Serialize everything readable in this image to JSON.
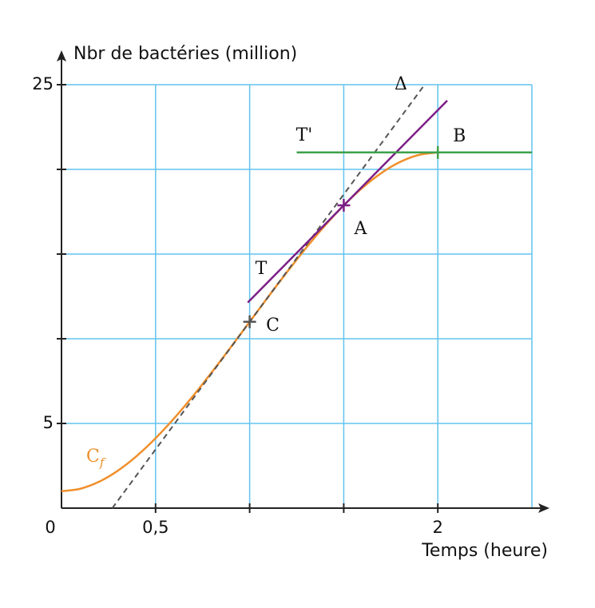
{
  "chart_data": {
    "type": "function",
    "x_label": "Temps (heure)",
    "y_label": "Nbr de bactéries (million)",
    "xlim": [
      0,
      2.5
    ],
    "ylim": [
      0,
      25
    ],
    "xticks": [
      0,
      {
        "value": 0.5,
        "label": "0,5"
      },
      {
        "value": 1,
        "label": null
      },
      {
        "value": 1.5,
        "label": null
      },
      2
    ],
    "yticks": [
      5,
      {
        "value": 10,
        "label": null
      },
      {
        "value": 15,
        "label": null
      },
      {
        "value": 20,
        "label": null
      },
      25
    ],
    "grid": true,
    "curve": {
      "name": "C",
      "subscript": "f",
      "color": "#ef8f2b",
      "x": [
        0,
        0.1,
        0.2,
        0.3,
        0.4,
        0.5,
        0.6,
        0.7,
        0.8,
        0.9,
        1,
        1.1,
        1.2,
        1.3,
        1.4,
        1.5,
        1.6,
        1.7,
        1.8,
        1.9,
        2
      ],
      "values": [
        1,
        1.145,
        1.56,
        2.215,
        3.08,
        4.125,
        5.32,
        6.635,
        8.04,
        9.505,
        11,
        12.495,
        13.96,
        15.365,
        16.68,
        17.875,
        18.92,
        19.785,
        20.44,
        20.855,
        21
      ]
    },
    "lines": [
      {
        "name": "Δ",
        "color": "#555555",
        "dashed": true,
        "x": [
          0.27,
          1.93
        ],
        "values": [
          0,
          25
        ]
      },
      {
        "name": "T",
        "color": "#7b1e86",
        "dashed": false,
        "x": [
          0.99,
          2.05
        ],
        "values": [
          12.14,
          24.06
        ]
      },
      {
        "name": "T'",
        "color": "#3ea04a",
        "dashed": false,
        "x": [
          1.25,
          2.5
        ],
        "values": [
          21,
          21
        ]
      }
    ],
    "points": [
      {
        "name": "A",
        "color": "#7b1e86",
        "x": 1.5,
        "y": 17.88
      },
      {
        "name": "B",
        "color": "#3ea04a",
        "x": 2,
        "y": 21
      },
      {
        "name": "C",
        "color": "#555555",
        "x": 1,
        "y": 11
      }
    ]
  }
}
